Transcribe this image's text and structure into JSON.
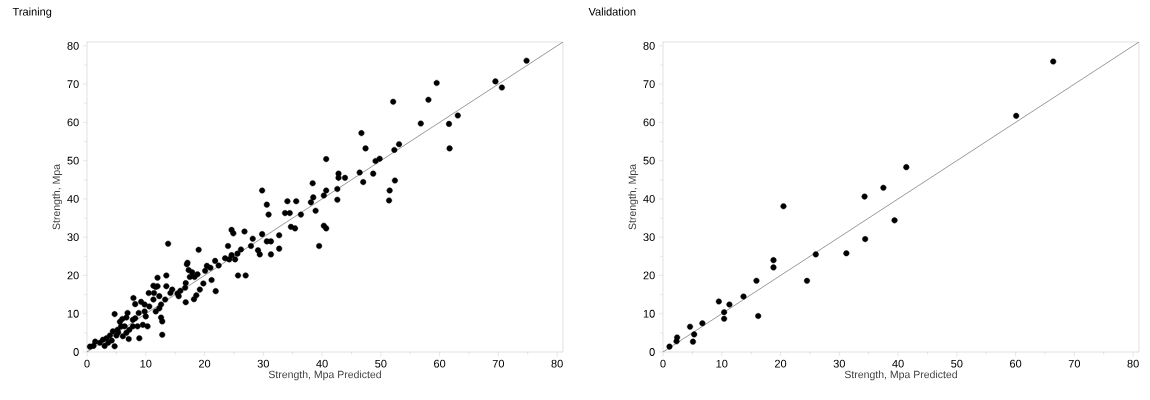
{
  "chart_data": [
    {
      "type": "scatter",
      "title": "Training",
      "xlabel": "Strength, Mpa Predicted",
      "ylabel": "Strength, Mpa",
      "xlim": [
        0,
        81
      ],
      "ylim": [
        0,
        81
      ],
      "xticks": [
        0,
        10,
        20,
        30,
        40,
        50,
        60,
        70,
        80
      ],
      "yticks": [
        0,
        10,
        20,
        30,
        40,
        50,
        60,
        70,
        80
      ],
      "marker": "circle",
      "series": [
        {
          "color": "#000000",
          "x": [
            74.8,
            69.5,
            70.6,
            59.5,
            58.1,
            52.1,
            56.8,
            61.6,
            63.1,
            61.7,
            46.7,
            47.4,
            53.1,
            52.3,
            49.8,
            49.1,
            48.7,
            46.4,
            47.0,
            52.4,
            51.5,
            51.4,
            40.7,
            42.8,
            42.8,
            43.9,
            42.6,
            42.6,
            38.4,
            40.7,
            40.3,
            38.5,
            38.1,
            38.9,
            29.8,
            30.6,
            30.9,
            34.1,
            35.6,
            33.7,
            34.5,
            36.4,
            34.7,
            35.4,
            40.3,
            40.7,
            39.5,
            32.7,
            29.8,
            31.3,
            30.6,
            32.7,
            31.3,
            24.6,
            24.9,
            26.8,
            28.2,
            19.0,
            24.0,
            29.1,
            29.4,
            13.8,
            27.9,
            26.2,
            25.6,
            23.5,
            24.6,
            25.2,
            24.2,
            25.7,
            27.0,
            21.8,
            22.4,
            21.0,
            20.4,
            20.1,
            21.2,
            21.9,
            18.8,
            18.3,
            17.5,
            17.9,
            17.0,
            17.3,
            17.1,
            19.8,
            19.2,
            18.6,
            18.2,
            16.8,
            16.7,
            16.8,
            15.9,
            15.4,
            14.5,
            13.5,
            12.0,
            12.0,
            11.3,
            11.7,
            10.5,
            7.9,
            8.2,
            9.2,
            9.8,
            12.3,
            12.6,
            13.3,
            11.3,
            10.6,
            12.3,
            11.7,
            12.6,
            12.8,
            12.8,
            8.8,
            8.2,
            7.8,
            6.9,
            6.7,
            6.0,
            4.7,
            9.8,
            10.0,
            9.5,
            8.9,
            8.6,
            10.3,
            7.8,
            7.1,
            5.6,
            5.8,
            5.2,
            4.4,
            3.9,
            3.3,
            2.7,
            4.7,
            6.4,
            6.7,
            6.1,
            7.2,
            2.2,
            1.4,
            1.1,
            0.5,
            3.6,
            4.2,
            3.0,
            5.0,
            5.3,
            13.5,
            14.2,
            15.6,
            11.4
          ],
          "values": [
            76.1,
            70.7,
            69.1,
            70.3,
            65.9,
            65.4,
            59.7,
            59.6,
            61.8,
            53.2,
            57.2,
            53.2,
            54.3,
            52.8,
            50.5,
            49.9,
            46.6,
            46.9,
            44.4,
            44.8,
            42.2,
            39.6,
            50.4,
            46.6,
            45.5,
            45.5,
            42.6,
            39.8,
            44.1,
            42.2,
            40.9,
            40.4,
            39.1,
            36.9,
            42.2,
            38.5,
            35.9,
            39.4,
            39.4,
            36.3,
            36.3,
            35.9,
            32.7,
            32.3,
            33.0,
            32.3,
            27.7,
            30.5,
            30.8,
            28.9,
            28.9,
            27.0,
            25.5,
            31.9,
            31.0,
            31.5,
            29.6,
            26.7,
            27.7,
            26.6,
            25.5,
            28.3,
            27.7,
            26.8,
            25.7,
            24.5,
            25.3,
            24.2,
            24.2,
            20.0,
            20.0,
            23.8,
            22.6,
            22.0,
            22.5,
            21.2,
            18.8,
            15.9,
            20.3,
            19.6,
            19.6,
            20.8,
            22.9,
            21.4,
            23.3,
            17.9,
            16.3,
            14.8,
            13.8,
            18.0,
            16.8,
            13.0,
            16.0,
            15.3,
            16.3,
            20.0,
            19.4,
            17.2,
            17.3,
            17.0,
            15.4,
            14.1,
            12.5,
            13.1,
            12.4,
            14.6,
            12.4,
            13.7,
            13.7,
            11.9,
            11.4,
            10.6,
            9.0,
            8.0,
            4.5,
            10.2,
            8.8,
            8.4,
            10.2,
            9.0,
            8.6,
            9.9,
            10.6,
            9.3,
            7.1,
            3.6,
            6.7,
            6.7,
            6.7,
            3.4,
            7.9,
            6.7,
            5.8,
            5.4,
            4.3,
            3.6,
            3.2,
            1.5,
            6.7,
            5.0,
            4.1,
            5.8,
            2.4,
            2.7,
            1.6,
            1.4,
            2.4,
            3.0,
            1.6,
            4.3,
            5.1,
            17.2,
            15.4,
            14.6,
            15.4
          ]
        },
        {
          "type": "line",
          "color": "#555555",
          "marker": "none",
          "x": [
            0,
            81
          ],
          "values": [
            0,
            81
          ]
        }
      ]
    },
    {
      "type": "scatter",
      "title": "Validation",
      "xlabel": "Strength, Mpa Predicted",
      "ylabel": "Strength, Mpa",
      "xlim": [
        0,
        81
      ],
      "ylim": [
        0,
        81
      ],
      "xticks": [
        0,
        10,
        20,
        30,
        40,
        50,
        60,
        70,
        80
      ],
      "yticks": [
        0,
        10,
        20,
        30,
        40,
        50,
        60,
        70,
        80
      ],
      "marker": "circle",
      "series": [
        {
          "color": "#000000",
          "x": [
            1.1,
            2.3,
            2.4,
            4.6,
            5.3,
            5.1,
            6.7,
            9.5,
            10.4,
            10.4,
            11.3,
            13.7,
            15.9,
            16.2,
            18.8,
            18.8,
            20.5,
            24.5,
            26.0,
            31.2,
            34.3,
            34.4,
            37.5,
            39.4,
            41.4,
            60.1,
            66.4
          ],
          "values": [
            1.4,
            2.8,
            3.8,
            6.6,
            4.6,
            2.7,
            7.5,
            13.2,
            10.4,
            8.7,
            12.4,
            14.5,
            18.6,
            9.4,
            24.0,
            22.1,
            38.1,
            18.6,
            25.5,
            25.8,
            40.6,
            29.5,
            42.9,
            34.4,
            48.3,
            61.7,
            75.9
          ]
        },
        {
          "type": "line",
          "color": "#555555",
          "marker": "none",
          "x": [
            0,
            81
          ],
          "values": [
            0,
            81
          ]
        }
      ]
    }
  ]
}
